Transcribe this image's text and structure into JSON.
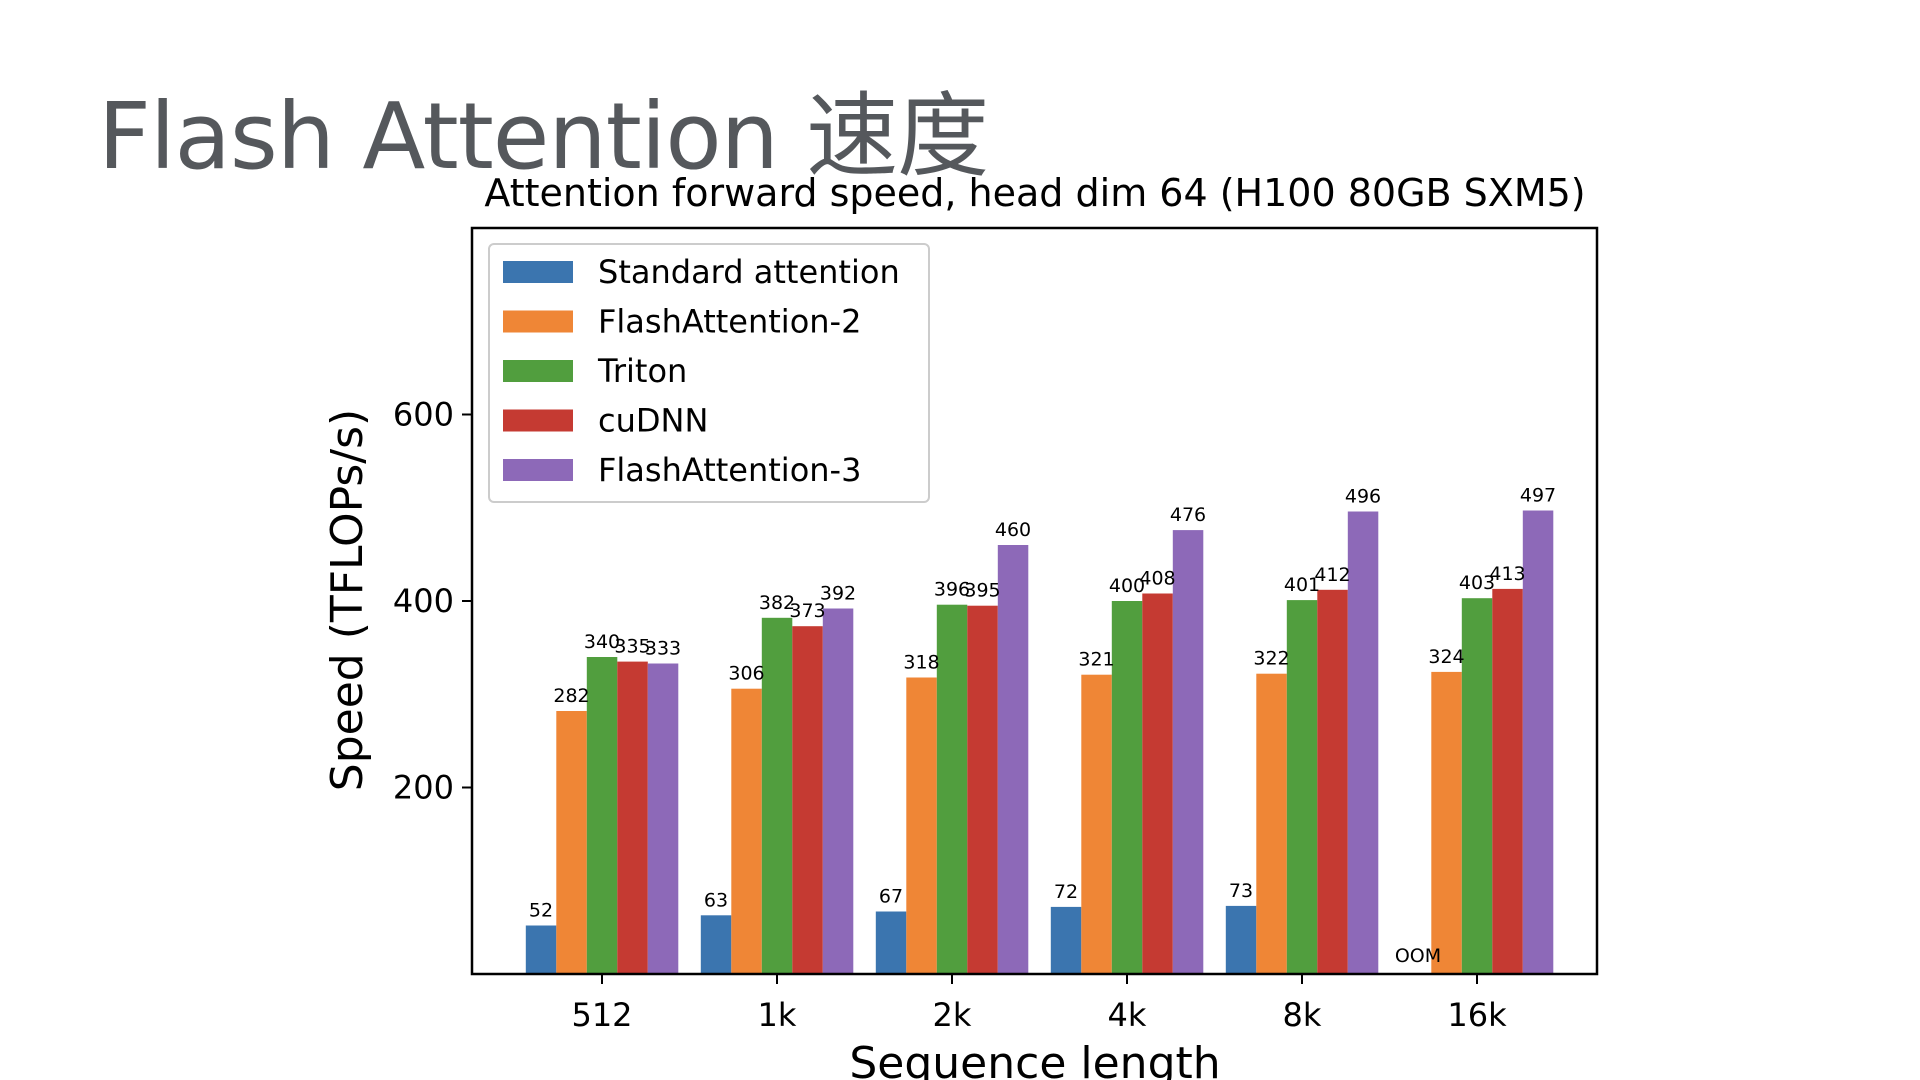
{
  "slide": {
    "title": "Flash Attention 速度"
  },
  "chart_data": {
    "type": "bar",
    "title": "Attention forward speed, head dim 64 (H100 80GB SXM5)",
    "xlabel": "Sequence length",
    "ylabel": "Speed (TFLOPs/s)",
    "categories": [
      "512",
      "1k",
      "2k",
      "4k",
      "8k",
      "16k"
    ],
    "ylim": [
      0,
      800
    ],
    "yticks": [
      200,
      400,
      600
    ],
    "legend_position": "top-left",
    "series": [
      {
        "name": "Standard attention",
        "color": "#3b75af",
        "values": [
          52,
          63,
          67,
          72,
          73,
          null
        ],
        "labels": [
          "52",
          "63",
          "67",
          "72",
          "73",
          "OOM"
        ]
      },
      {
        "name": "FlashAttention-2",
        "color": "#ef8636",
        "values": [
          282,
          306,
          318,
          321,
          322,
          324
        ],
        "labels": [
          "282",
          "306",
          "318",
          "321",
          "322",
          "324"
        ]
      },
      {
        "name": "Triton",
        "color": "#519e3e",
        "values": [
          340,
          382,
          396,
          400,
          401,
          403
        ],
        "labels": [
          "340",
          "382",
          "396",
          "400",
          "401",
          "403"
        ]
      },
      {
        "name": "cuDNN",
        "color": "#c53a32",
        "values": [
          335,
          373,
          395,
          408,
          412,
          413
        ],
        "labels": [
          "335",
          "373",
          "395",
          "408",
          "412",
          "413"
        ]
      },
      {
        "name": "FlashAttention-3",
        "color": "#8d69b8",
        "values": [
          333,
          392,
          460,
          476,
          496,
          497
        ],
        "labels": [
          "333",
          "392",
          "460",
          "476",
          "496",
          "497"
        ]
      }
    ]
  }
}
